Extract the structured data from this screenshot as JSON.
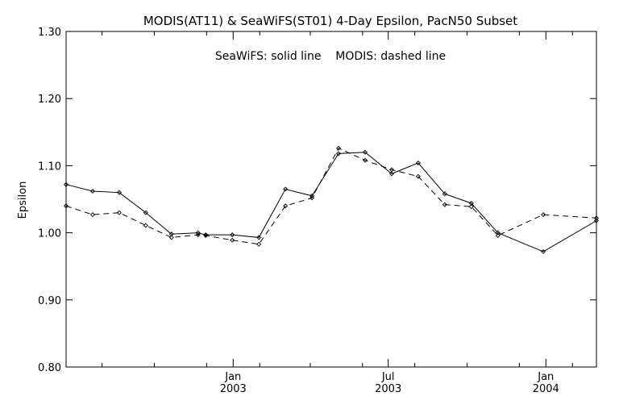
{
  "chart_data": {
    "type": "line",
    "title": "MODIS(AT11) & SeaWiFS(ST01) 4-Day Epsilon, PacN50 Subset",
    "annotation": "SeaWiFS: solid line    MODIS: dashed line",
    "ylabel": "Epsilon",
    "xlabel": "",
    "ylim": [
      0.8,
      1.3
    ],
    "xlim": [
      "2002-06-20",
      "2004-02-29"
    ],
    "y_ticks": [
      {
        "value": 0.8,
        "label": "0.80"
      },
      {
        "value": 0.9,
        "label": "0.90"
      },
      {
        "value": 1.0,
        "label": "1.00"
      },
      {
        "value": 1.1,
        "label": "1.10"
      },
      {
        "value": 1.2,
        "label": "1.20"
      },
      {
        "value": 1.3,
        "label": "1.30"
      }
    ],
    "x_major_ticks": [
      {
        "date": "2003-01-01",
        "month": "Jan",
        "year": "2003"
      },
      {
        "date": "2003-07-01",
        "month": "Jul",
        "year": "2003"
      },
      {
        "date": "2004-01-01",
        "month": "Jan",
        "year": "2004"
      }
    ],
    "x_minor_ticks": [
      "2002-08-01",
      "2002-10-01",
      "2002-12-01",
      "2003-02-01",
      "2003-04-01",
      "2003-06-01",
      "2003-08-01",
      "2003-10-01",
      "2003-12-01",
      "2004-02-01"
    ],
    "series": [
      {
        "name": "SeaWiFS",
        "style": "solid",
        "points": [
          {
            "x": "2002-06-20",
            "y": 1.072
          },
          {
            "x": "2002-07-21",
            "y": 1.062
          },
          {
            "x": "2002-08-21",
            "y": 1.06
          },
          {
            "x": "2002-09-21",
            "y": 1.03
          },
          {
            "x": "2002-10-21",
            "y": 0.998
          },
          {
            "x": "2002-11-21",
            "y": 1.0
          },
          {
            "x": "2002-11-30",
            "y": 0.997
          },
          {
            "x": "2002-12-31",
            "y": 0.997
          },
          {
            "x": "2003-01-31",
            "y": 0.993
          },
          {
            "x": "2003-03-03",
            "y": 1.065
          },
          {
            "x": "2003-04-03",
            "y": 1.055
          },
          {
            "x": "2003-05-04",
            "y": 1.118
          },
          {
            "x": "2003-06-04",
            "y": 1.12
          },
          {
            "x": "2003-07-05",
            "y": 1.088
          },
          {
            "x": "2003-08-05",
            "y": 1.104
          },
          {
            "x": "2003-09-05",
            "y": 1.058
          },
          {
            "x": "2003-10-06",
            "y": 1.044
          },
          {
            "x": "2003-11-06",
            "y": 1.0
          },
          {
            "x": "2003-12-29",
            "y": 0.972
          },
          {
            "x": "2004-02-29",
            "y": 1.018
          }
        ]
      },
      {
        "name": "MODIS",
        "style": "dashed",
        "points": [
          {
            "x": "2002-06-20",
            "y": 1.04
          },
          {
            "x": "2002-07-21",
            "y": 1.027
          },
          {
            "x": "2002-08-21",
            "y": 1.03
          },
          {
            "x": "2002-09-21",
            "y": 1.011
          },
          {
            "x": "2002-10-21",
            "y": 0.993
          },
          {
            "x": "2002-11-21",
            "y": 0.997
          },
          {
            "x": "2002-11-30",
            "y": 0.996
          },
          {
            "x": "2002-12-31",
            "y": 0.989
          },
          {
            "x": "2003-01-31",
            "y": 0.983
          },
          {
            "x": "2003-03-03",
            "y": 1.04
          },
          {
            "x": "2003-04-03",
            "y": 1.052
          },
          {
            "x": "2003-05-04",
            "y": 1.126
          },
          {
            "x": "2003-06-04",
            "y": 1.108
          },
          {
            "x": "2003-07-05",
            "y": 1.094
          },
          {
            "x": "2003-08-05",
            "y": 1.084
          },
          {
            "x": "2003-09-05",
            "y": 1.042
          },
          {
            "x": "2003-10-06",
            "y": 1.039
          },
          {
            "x": "2003-11-06",
            "y": 0.996
          },
          {
            "x": "2003-12-29",
            "y": 1.027
          },
          {
            "x": "2004-02-29",
            "y": 1.022
          }
        ]
      }
    ]
  }
}
